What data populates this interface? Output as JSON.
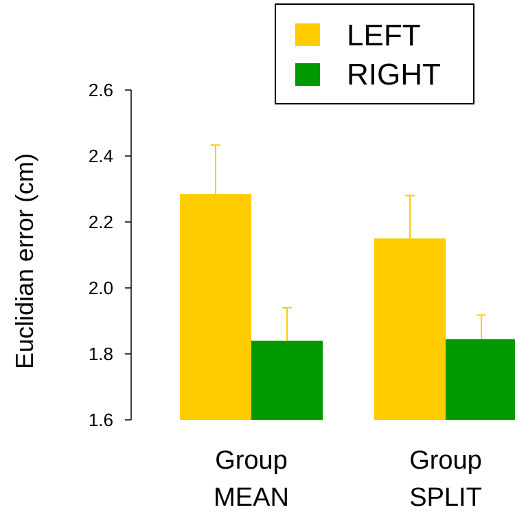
{
  "chart_data": {
    "type": "bar",
    "title": "",
    "xlabel": "",
    "ylabel": "Euclidian error (cm)",
    "ylim": [
      1.6,
      2.6
    ],
    "yticks": [
      "1.6",
      "1.8",
      "2.0",
      "2.2",
      "2.4",
      "2.6"
    ],
    "categories": [
      [
        "Group",
        "MEAN"
      ],
      [
        "Group",
        "SPLIT"
      ]
    ],
    "series": [
      {
        "name": "LEFT",
        "color": "#ffcc00",
        "values": [
          2.285,
          2.15
        ],
        "error": [
          0.148,
          0.13
        ]
      },
      {
        "name": "RIGHT",
        "color": "#009900",
        "values": [
          1.84,
          1.845
        ],
        "error": [
          0.1,
          0.073
        ]
      }
    ],
    "error_bar_color": "#ffcc00",
    "legend_position": "top",
    "grid": false
  }
}
